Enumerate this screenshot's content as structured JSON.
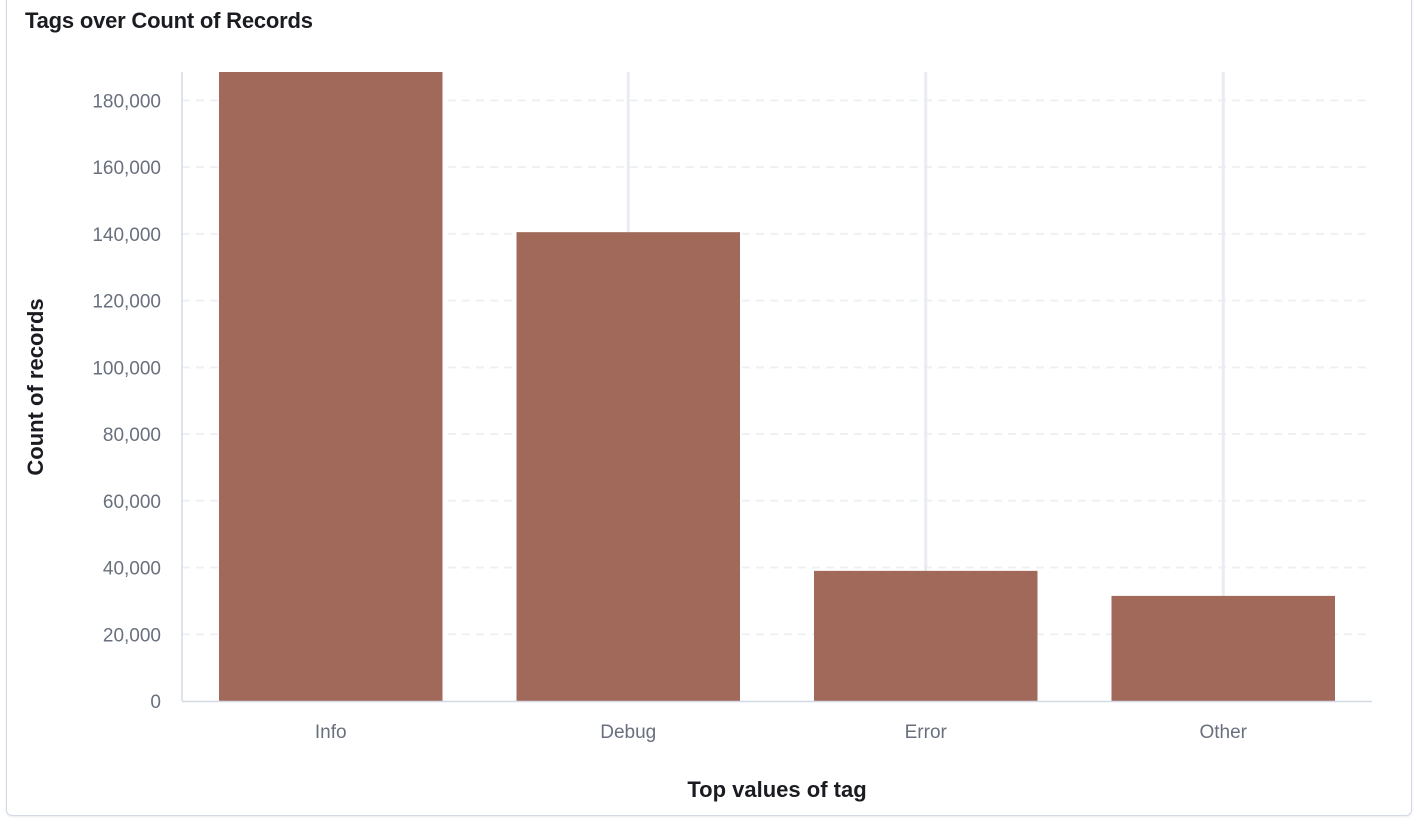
{
  "panel": {
    "title": "Tags over Count of Records"
  },
  "colors": {
    "bar": "#a16959",
    "grid": "#eef0f3",
    "vertical_grid": "#e9ecf1",
    "axis": "#d3dae6"
  },
  "chart_data": {
    "type": "bar",
    "title": "Tags over Count of Records",
    "xlabel": "Top values of tag",
    "ylabel": "Count of records",
    "categories": [
      "Info",
      "Debug",
      "Error",
      "Other"
    ],
    "values": [
      188500,
      140500,
      39000,
      31500
    ],
    "ylim": [
      0,
      188500
    ],
    "yticks": [
      0,
      20000,
      40000,
      60000,
      80000,
      100000,
      120000,
      140000,
      160000,
      180000
    ],
    "ytick_labels": [
      "0",
      "20,000",
      "40,000",
      "60,000",
      "80,000",
      "100,000",
      "120,000",
      "140,000",
      "160,000",
      "180,000"
    ],
    "grid": true,
    "legend": "none"
  }
}
